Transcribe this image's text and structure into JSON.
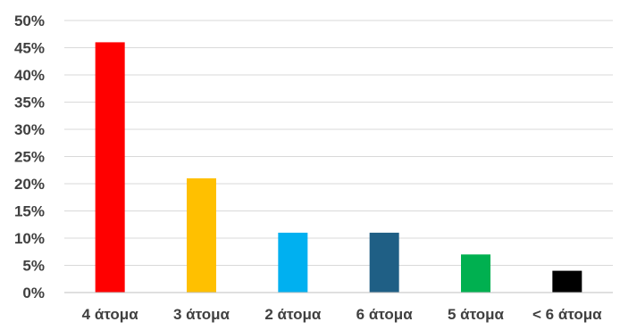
{
  "chart_data": {
    "type": "bar",
    "title": "",
    "xlabel": "",
    "ylabel": "",
    "categories": [
      "4 άτομα",
      "3 άτομα",
      "2 άτομα",
      "6 άτομα",
      "5 άτομα",
      "< 6 άτομα"
    ],
    "values": [
      46,
      21,
      11,
      11,
      7,
      4
    ],
    "value_unit": "%",
    "ylim": [
      0,
      50
    ],
    "y_ticks": [
      "0%",
      "5%",
      "10%",
      "15%",
      "20%",
      "25%",
      "30%",
      "35%",
      "40%",
      "45%",
      "50%"
    ],
    "grid": true,
    "legend": "none",
    "colors": [
      "#FF0000",
      "#FFC000",
      "#00B0F0",
      "#1F5F85",
      "#00B050",
      "#000000"
    ]
  }
}
